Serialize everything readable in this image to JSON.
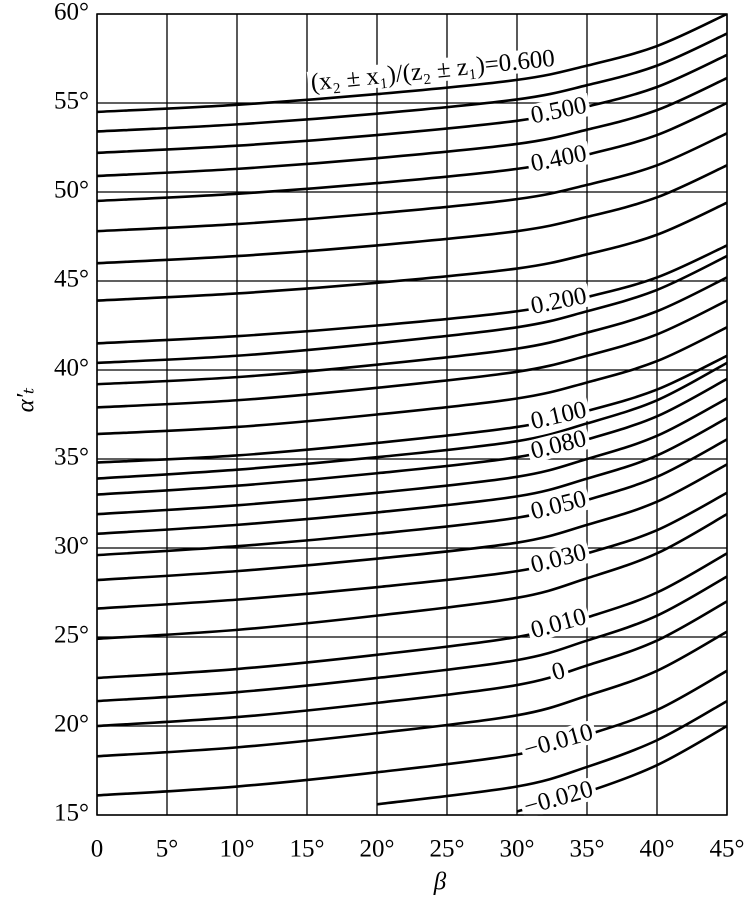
{
  "chart_data": {
    "type": "line",
    "x_label": "β",
    "y_label": "α′ₜ",
    "xlim": [
      0,
      45
    ],
    "ylim": [
      15,
      60
    ],
    "xticks": [
      0,
      {
        "value": 5,
        "label": "5°"
      },
      {
        "value": 10,
        "label": "10°"
      },
      {
        "value": 15,
        "label": "15°"
      },
      {
        "value": 20,
        "label": "20°"
      },
      {
        "value": 25,
        "label": "25°"
      },
      {
        "value": 30,
        "label": "30°"
      },
      {
        "value": 35,
        "label": "35°"
      },
      {
        "value": 40,
        "label": "40°"
      },
      {
        "value": 45,
        "label": "45°"
      }
    ],
    "yticks": [
      {
        "value": 15,
        "label": "15°"
      },
      {
        "value": 20,
        "label": "20°"
      },
      {
        "value": 25,
        "label": "25°"
      },
      {
        "value": 30,
        "label": "30°"
      },
      {
        "value": 35,
        "label": "35°"
      },
      {
        "value": 40,
        "label": "40°"
      },
      {
        "value": 45,
        "label": "45°"
      },
      {
        "value": 50,
        "label": "50°"
      },
      {
        "value": 55,
        "label": "55°"
      },
      {
        "value": 60,
        "label": "60°"
      }
    ],
    "grid": true,
    "color": "#000000",
    "x": [
      0,
      10,
      20,
      30,
      35,
      40,
      45
    ],
    "series": [
      {
        "name": "(x₂ ± x₁)/(z₂ ± z₁)=0.600",
        "values": [
          54.5,
          54.9,
          55.5,
          56.3,
          57.1,
          58.2,
          60.0
        ]
      },
      {
        "values": [
          53.4,
          53.8,
          54.4,
          55.2,
          56.0,
          57.1,
          58.9
        ]
      },
      {
        "name": "0.500",
        "values": [
          52.2,
          52.6,
          53.2,
          54.0,
          54.8,
          55.9,
          57.7
        ]
      },
      {
        "values": [
          50.9,
          51.3,
          51.9,
          52.7,
          53.5,
          54.6,
          56.4
        ]
      },
      {
        "name": "0.400",
        "values": [
          49.5,
          49.9,
          50.5,
          51.3,
          52.1,
          53.2,
          55.0
        ]
      },
      {
        "values": [
          47.8,
          48.2,
          48.8,
          49.6,
          50.4,
          51.5,
          53.3
        ]
      },
      {
        "values": [
          46.0,
          46.4,
          47.0,
          47.8,
          48.6,
          49.7,
          51.5
        ]
      },
      {
        "values": [
          43.9,
          44.3,
          44.9,
          45.7,
          46.5,
          47.6,
          49.4
        ]
      },
      {
        "name": "0.200",
        "values": [
          41.5,
          41.9,
          42.5,
          43.3,
          44.1,
          45.2,
          47.0
        ]
      },
      {
        "values": [
          40.4,
          40.8,
          41.5,
          42.4,
          43.3,
          44.5,
          46.4
        ]
      },
      {
        "values": [
          39.2,
          39.6,
          40.3,
          41.2,
          42.1,
          43.3,
          45.2
        ]
      },
      {
        "values": [
          37.9,
          38.3,
          39.0,
          39.9,
          40.8,
          42.0,
          43.9
        ]
      },
      {
        "values": [
          36.4,
          36.8,
          37.5,
          38.4,
          39.3,
          40.5,
          42.4
        ]
      },
      {
        "name": "0.100",
        "values": [
          34.8,
          35.2,
          35.9,
          36.8,
          37.7,
          38.9,
          40.8
        ]
      },
      {
        "values": [
          33.9,
          34.4,
          35.1,
          36.0,
          37.0,
          38.3,
          40.4
        ]
      },
      {
        "name": "0.080",
        "values": [
          33.0,
          33.5,
          34.2,
          35.1,
          36.1,
          37.4,
          39.5
        ]
      },
      {
        "values": [
          31.9,
          32.4,
          33.1,
          34.0,
          35.0,
          36.3,
          38.4
        ]
      },
      {
        "values": [
          30.8,
          31.3,
          32.0,
          32.9,
          33.9,
          35.2,
          37.3
        ]
      },
      {
        "name": "0.050",
        "values": [
          29.6,
          30.1,
          30.8,
          31.7,
          32.7,
          34.0,
          36.1
        ]
      },
      {
        "values": [
          28.2,
          28.7,
          29.4,
          30.3,
          31.3,
          32.6,
          34.7
        ]
      },
      {
        "name": "0.030",
        "values": [
          26.6,
          27.1,
          27.8,
          28.7,
          29.7,
          31.0,
          33.1
        ]
      },
      {
        "values": [
          24.9,
          25.4,
          26.2,
          27.2,
          28.3,
          29.7,
          31.9
        ]
      },
      {
        "name": "0.010",
        "values": [
          22.7,
          23.2,
          24.0,
          25.0,
          26.1,
          27.5,
          29.7
        ]
      },
      {
        "values": [
          21.4,
          21.9,
          22.7,
          23.7,
          24.8,
          26.2,
          28.4
        ]
      },
      {
        "name": "0",
        "values": [
          20.0,
          20.5,
          21.3,
          22.3,
          23.4,
          24.8,
          27.0
        ]
      },
      {
        "values": [
          18.3,
          18.8,
          19.6,
          20.6,
          21.7,
          23.1,
          25.3
        ]
      },
      {
        "name": "−0.010",
        "values": [
          16.1,
          16.6,
          17.4,
          18.4,
          19.5,
          20.9,
          23.1
        ]
      },
      {
        "values": [
          null,
          null,
          15.6,
          16.6,
          17.7,
          19.2,
          21.4
        ]
      },
      {
        "name": "−0.020",
        "values": [
          null,
          null,
          null,
          15.2,
          16.3,
          17.8,
          20.0
        ]
      }
    ]
  }
}
